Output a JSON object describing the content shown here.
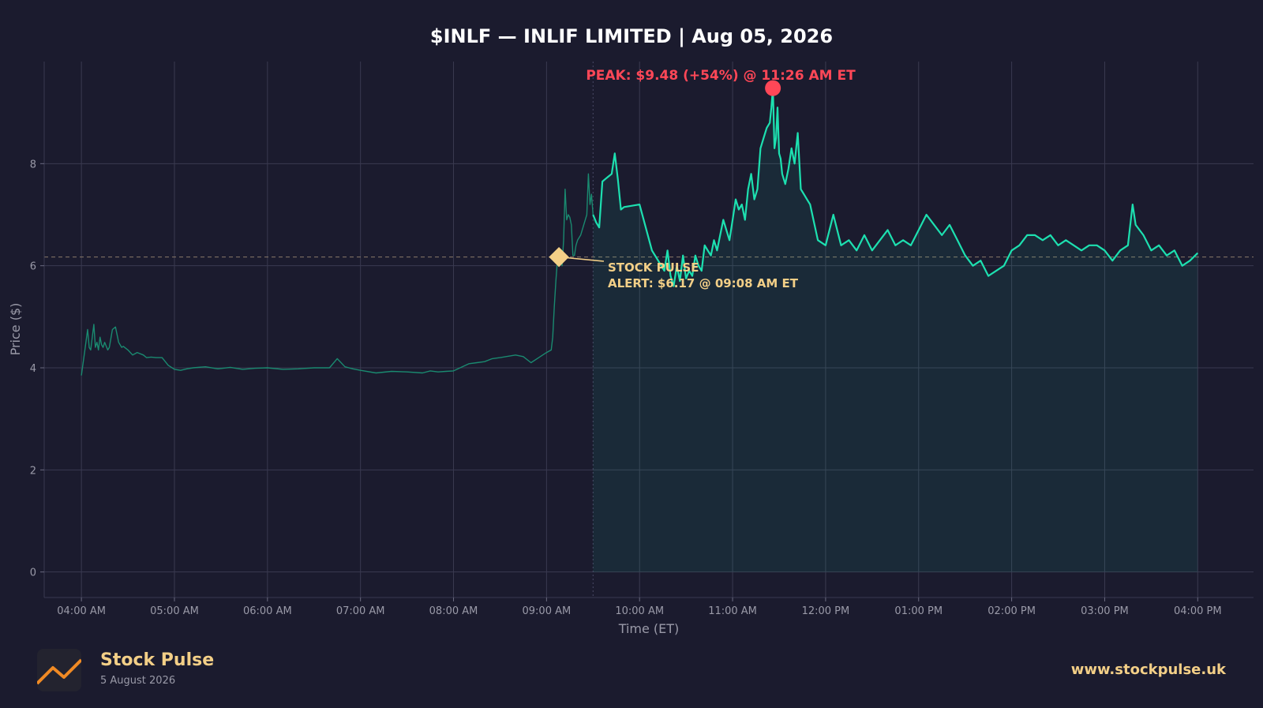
{
  "title": "$INLF — INLIF LIMITED  |  Aug 05, 2026",
  "colors": {
    "background": "#1b1b2e",
    "line": "#1de0b0",
    "premarket_line": "#1a8a70",
    "peak": "#ff4757",
    "alert": "#f3cf87"
  },
  "chart_data": {
    "type": "line",
    "title": "$INLF — INLIF LIMITED  |  Aug 05, 2026",
    "xlabel": "Time (ET)",
    "ylabel": "Price ($)",
    "x_unit": "time ET",
    "xlim": [
      "03:36 AM",
      "04:36 PM"
    ],
    "ylim": [
      -0.5,
      10
    ],
    "x_ticks": [
      "04:00 AM",
      "05:00 AM",
      "06:00 AM",
      "07:00 AM",
      "08:00 AM",
      "09:00 AM",
      "10:00 AM",
      "11:00 AM",
      "12:00 PM",
      "01:00 PM",
      "02:00 PM",
      "03:00 PM",
      "04:00 PM"
    ],
    "y_ticks": [
      0,
      2,
      4,
      6,
      8
    ],
    "grid": true,
    "alert_level": 6.17,
    "market_open": "09:30 AM",
    "series": [
      {
        "segment": "premarket",
        "x": [
          "04:00 AM",
          "04:02 AM",
          "04:04 AM",
          "04:05 AM",
          "04:06 AM",
          "04:07 AM",
          "04:08 AM",
          "04:09 AM",
          "04:10 AM",
          "04:11 AM",
          "04:12 AM",
          "04:13 AM",
          "04:14 AM",
          "04:15 AM",
          "04:17 AM",
          "04:18 AM",
          "04:20 AM",
          "04:22 AM",
          "04:24 AM",
          "04:25 AM",
          "04:26 AM",
          "04:27 AM",
          "04:30 AM",
          "04:33 AM",
          "04:36 AM",
          "04:40 AM",
          "04:42 AM",
          "04:45 AM",
          "04:48 AM",
          "04:52 AM",
          "04:56 AM",
          "05:00 AM",
          "05:04 AM",
          "05:08 AM",
          "05:12 AM",
          "05:20 AM",
          "05:28 AM",
          "05:36 AM",
          "05:44 AM",
          "05:52 AM",
          "06:00 AM",
          "06:10 AM",
          "06:20 AM",
          "06:30 AM",
          "06:40 AM",
          "06:45 AM",
          "06:50 AM",
          "06:55 AM",
          "07:00 AM",
          "07:10 AM",
          "07:20 AM",
          "07:30 AM",
          "07:40 AM",
          "07:45 AM",
          "07:50 AM",
          "07:55 AM",
          "08:00 AM",
          "08:10 AM",
          "08:15 AM",
          "08:20 AM",
          "08:25 AM",
          "08:30 AM",
          "08:40 AM",
          "08:45 AM",
          "08:50 AM",
          "08:55 AM",
          "09:00 AM",
          "09:03 AM",
          "09:04 AM",
          "09:05 AM",
          "09:06 AM",
          "09:07 AM",
          "09:08 AM",
          "09:09 AM",
          "09:10 AM",
          "09:11 AM",
          "09:12 AM",
          "09:13 AM",
          "09:14 AM",
          "09:15 AM",
          "09:16 AM",
          "09:17 AM",
          "09:18 AM",
          "09:19 AM",
          "09:20 AM",
          "09:22 AM",
          "09:24 AM",
          "09:26 AM",
          "09:27 AM",
          "09:28 AM",
          "09:29 AM",
          "09:30 AM"
        ],
        "values": [
          3.85,
          4.3,
          4.75,
          4.4,
          4.35,
          4.6,
          4.85,
          4.4,
          4.5,
          4.35,
          4.6,
          4.45,
          4.4,
          4.5,
          4.35,
          4.4,
          4.75,
          4.8,
          4.5,
          4.45,
          4.4,
          4.42,
          4.35,
          4.25,
          4.3,
          4.25,
          4.2,
          4.21,
          4.2,
          4.2,
          4.05,
          3.97,
          3.95,
          3.98,
          4.0,
          4.02,
          3.98,
          4.01,
          3.97,
          3.99,
          4.0,
          3.97,
          3.98,
          4.0,
          4.0,
          4.18,
          4.02,
          3.98,
          3.95,
          3.9,
          3.93,
          3.92,
          3.9,
          3.94,
          3.92,
          3.93,
          3.94,
          4.08,
          4.1,
          4.12,
          4.18,
          4.2,
          4.25,
          4.22,
          4.1,
          4.2,
          4.3,
          4.35,
          4.6,
          5.2,
          5.7,
          6.1,
          6.17,
          6.3,
          6.0,
          6.5,
          7.5,
          6.9,
          7.0,
          6.95,
          6.8,
          6.2,
          6.2,
          6.4,
          6.5,
          6.6,
          6.8,
          7.0,
          7.8,
          7.2,
          7.4,
          7.0
        ]
      },
      {
        "segment": "regular",
        "x": [
          "09:30 AM",
          "09:32 AM",
          "09:34 AM",
          "09:36 AM",
          "09:38 AM",
          "09:40 AM",
          "09:42 AM",
          "09:44 AM",
          "09:46 AM",
          "09:48 AM",
          "09:50 AM",
          "10:00 AM",
          "10:08 AM",
          "10:12 AM",
          "10:14 AM",
          "10:16 AM",
          "10:18 AM",
          "10:20 AM",
          "10:22 AM",
          "10:24 AM",
          "10:26 AM",
          "10:28 AM",
          "10:30 AM",
          "10:32 AM",
          "10:34 AM",
          "10:36 AM",
          "10:38 AM",
          "10:40 AM",
          "10:42 AM",
          "10:44 AM",
          "10:46 AM",
          "10:48 AM",
          "10:50 AM",
          "10:52 AM",
          "10:54 AM",
          "10:56 AM",
          "10:58 AM",
          "11:00 AM",
          "11:02 AM",
          "11:04 AM",
          "11:06 AM",
          "11:08 AM",
          "11:10 AM",
          "11:12 AM",
          "11:14 AM",
          "11:16 AM",
          "11:18 AM",
          "11:20 AM",
          "11:22 AM",
          "11:24 AM",
          "11:25 AM",
          "11:26 AM",
          "11:27 AM",
          "11:28 AM",
          "11:29 AM",
          "11:30 AM",
          "11:31 AM",
          "11:32 AM",
          "11:34 AM",
          "11:36 AM",
          "11:38 AM",
          "11:40 AM",
          "11:42 AM",
          "11:44 AM",
          "11:46 AM",
          "11:48 AM",
          "11:50 AM",
          "11:55 AM",
          "12:00 PM",
          "12:05 PM",
          "12:10 PM",
          "12:15 PM",
          "12:20 PM",
          "12:25 PM",
          "12:30 PM",
          "12:35 PM",
          "12:40 PM",
          "12:45 PM",
          "12:50 PM",
          "12:55 PM",
          "01:00 PM",
          "01:05 PM",
          "01:10 PM",
          "01:15 PM",
          "01:20 PM",
          "01:25 PM",
          "01:30 PM",
          "01:35 PM",
          "01:40 PM",
          "01:45 PM",
          "01:50 PM",
          "01:55 PM",
          "02:00 PM",
          "02:05 PM",
          "02:10 PM",
          "02:15 PM",
          "02:20 PM",
          "02:25 PM",
          "02:30 PM",
          "02:35 PM",
          "02:40 PM",
          "02:45 PM",
          "02:50 PM",
          "02:55 PM",
          "03:00 PM",
          "03:05 PM",
          "03:10 PM",
          "03:15 PM",
          "03:18 PM",
          "03:20 PM",
          "03:25 PM",
          "03:30 PM",
          "03:35 PM",
          "03:40 PM",
          "03:45 PM",
          "03:50 PM",
          "03:55 PM",
          "04:00 PM"
        ],
        "values": [
          7.0,
          6.85,
          6.75,
          7.65,
          7.7,
          7.75,
          7.8,
          8.2,
          7.7,
          7.1,
          7.15,
          7.2,
          6.3,
          6.1,
          6.0,
          5.9,
          6.3,
          5.8,
          5.6,
          6.0,
          5.7,
          6.2,
          5.75,
          5.9,
          5.8,
          6.2,
          6.0,
          5.9,
          6.4,
          6.3,
          6.2,
          6.5,
          6.3,
          6.6,
          6.9,
          6.7,
          6.5,
          6.9,
          7.3,
          7.1,
          7.2,
          6.9,
          7.5,
          7.8,
          7.3,
          7.5,
          8.3,
          8.5,
          8.7,
          8.8,
          9.1,
          9.48,
          8.3,
          8.5,
          9.1,
          8.2,
          8.1,
          7.8,
          7.6,
          7.9,
          8.3,
          8.0,
          8.6,
          7.5,
          7.4,
          7.3,
          7.2,
          6.5,
          6.4,
          7.0,
          6.4,
          6.5,
          6.3,
          6.6,
          6.3,
          6.5,
          6.7,
          6.4,
          6.5,
          6.4,
          6.7,
          7.0,
          6.8,
          6.6,
          6.8,
          6.5,
          6.2,
          6.0,
          6.1,
          5.8,
          5.9,
          6.0,
          6.3,
          6.4,
          6.6,
          6.6,
          6.5,
          6.6,
          6.4,
          6.5,
          6.4,
          6.3,
          6.4,
          6.4,
          6.3,
          6.1,
          6.3,
          6.4,
          7.2,
          6.8,
          6.6,
          6.3,
          6.4,
          6.2,
          6.3,
          6.0,
          6.1,
          6.25
        ]
      }
    ],
    "annotations": [
      {
        "label": "PEAK: $9.48 (+54%) @ 11:26 AM ET",
        "x": "11:26 AM",
        "y": 9.48
      },
      {
        "label_line1": "STOCK PULSE",
        "label_line2": "ALERT: $6.17 @ 09:08 AM ET",
        "x": "09:08 AM",
        "y": 6.17
      }
    ]
  },
  "footer": {
    "brand": "Stock Pulse",
    "date": "5 August 2026",
    "url": "www.stockpulse.uk"
  }
}
